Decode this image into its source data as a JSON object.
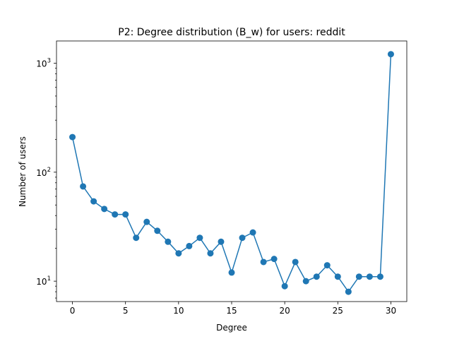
{
  "chart_data": {
    "type": "line",
    "title": "P2: Degree distribution (B_w) for users: reddit",
    "xlabel": "Degree",
    "ylabel": "Number of users",
    "yscale": "log",
    "xlim": [
      -1.5,
      31.5
    ],
    "ylim": [
      6.5,
      1600
    ],
    "grid": false,
    "xticks": [
      0,
      5,
      10,
      15,
      20,
      25,
      30
    ],
    "xtick_labels": [
      "0",
      "5",
      "10",
      "15",
      "20",
      "25",
      "30"
    ],
    "yticks": [
      {
        "value": 10,
        "base": "10",
        "exp": "1"
      },
      {
        "value": 100,
        "base": "10",
        "exp": "2"
      },
      {
        "value": 1000,
        "base": "10",
        "exp": "3"
      }
    ],
    "color": "#1f77b4",
    "x": [
      0,
      1,
      2,
      3,
      4,
      5,
      6,
      7,
      8,
      9,
      10,
      11,
      12,
      13,
      14,
      15,
      16,
      17,
      18,
      19,
      20,
      21,
      22,
      23,
      24,
      25,
      26,
      27,
      28,
      29,
      30
    ],
    "y": [
      210,
      74,
      54,
      46,
      41,
      41,
      25,
      35,
      29,
      23,
      18,
      21,
      25,
      18,
      23,
      12,
      25,
      28,
      15,
      16,
      9,
      15,
      10,
      11,
      14,
      11,
      8,
      11,
      11,
      11,
      1210
    ]
  }
}
